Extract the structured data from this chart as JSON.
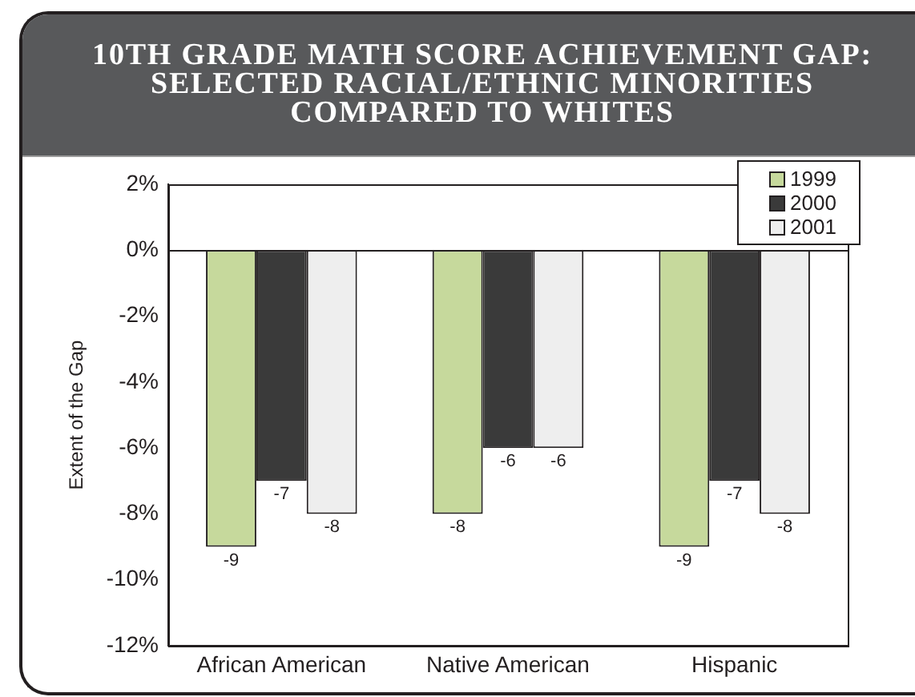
{
  "chart_data": {
    "type": "bar",
    "title": "10TH GRADE MATH SCORE ACHIEVEMENT GAP: SELECTED RACIAL/ETHNIC MINORITIES COMPARED TO WHITES",
    "ylabel": "Extent of the Gap",
    "categories": [
      "African American",
      "Native American",
      "Hispanic"
    ],
    "series": [
      {
        "name": "1999",
        "color": "#c6d99c",
        "values": [
          -9,
          -8,
          -9
        ]
      },
      {
        "name": "2000",
        "color": "#3a3a3a",
        "values": [
          -7,
          -6,
          -7
        ]
      },
      {
        "name": "2001",
        "color": "#eeeeee",
        "values": [
          -8,
          -6,
          -8
        ]
      }
    ],
    "ylim": [
      -12,
      2
    ],
    "yticks": [
      {
        "value": -12,
        "label": "-12%"
      },
      {
        "value": -10,
        "label": "-10%"
      },
      {
        "value": -8,
        "label": "-8%"
      },
      {
        "value": -6,
        "label": "-6%"
      },
      {
        "value": -4,
        "label": "-4%"
      },
      {
        "value": -2,
        "label": "-2%"
      },
      {
        "value": 0,
        "label": "0%"
      },
      {
        "value": 2,
        "label": "2%"
      }
    ],
    "ref_lines": [
      {
        "axis": "y",
        "value": 0,
        "color": "#231f20"
      }
    ],
    "data_labels": true,
    "legend": "top right"
  }
}
